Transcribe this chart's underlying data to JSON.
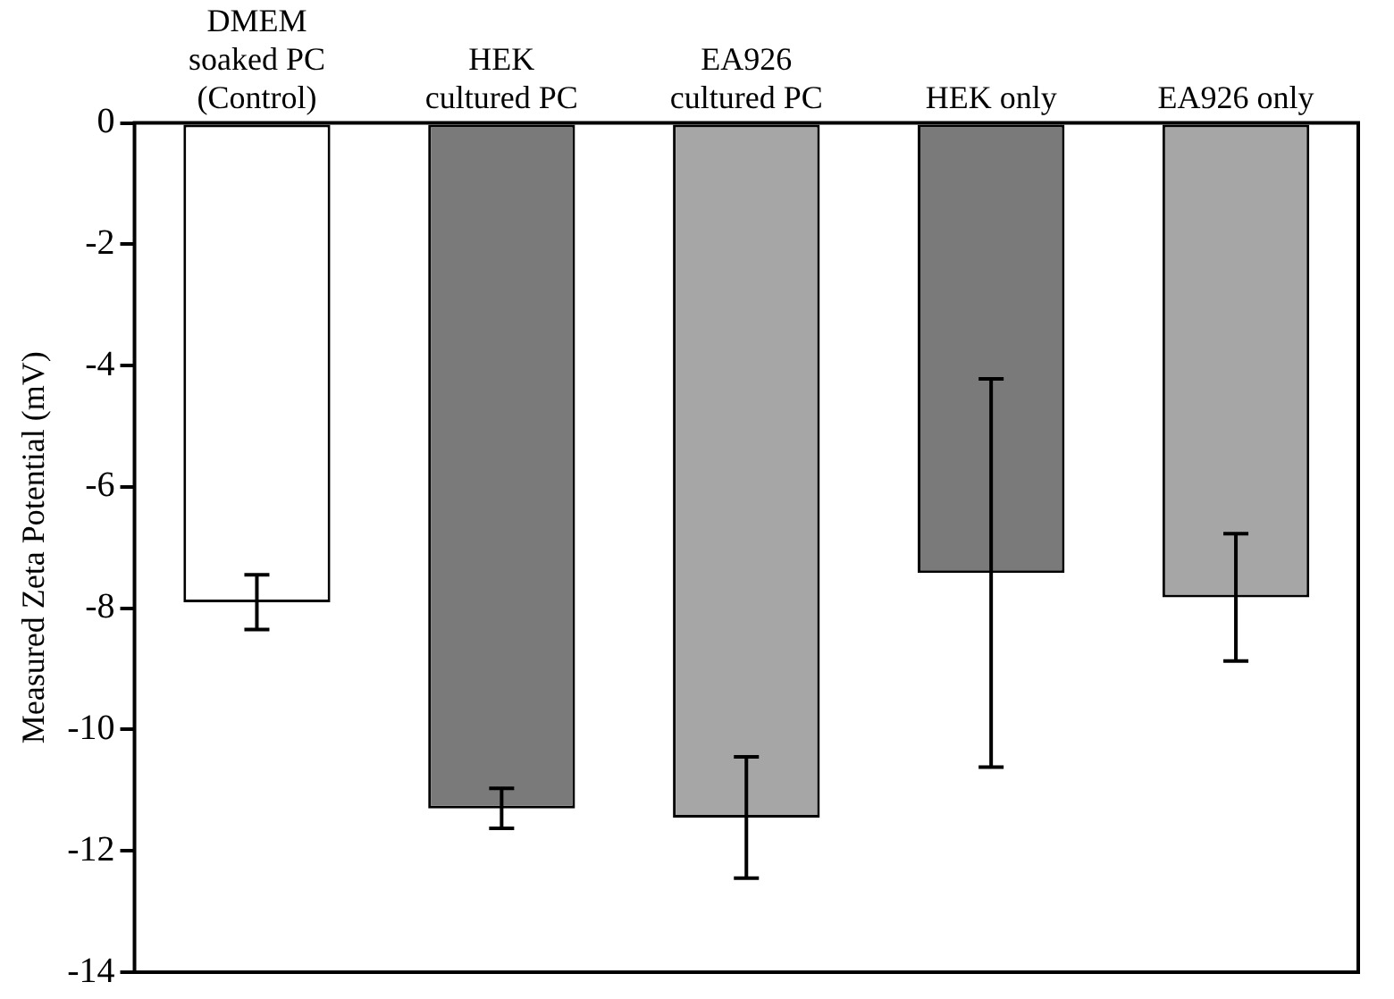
{
  "chart_data": {
    "type": "bar",
    "ylabel": "Measured Zeta Potential (mV)",
    "categories": [
      "DMEM\nsoaked PC\n(Control)",
      "HEK\ncultured PC",
      "EA926\ncultured PC",
      "HEK only",
      "EA926 only"
    ],
    "values": [
      -7.9,
      -11.3,
      -11.45,
      -7.42,
      -7.82
    ],
    "errors": [
      0.45,
      0.33,
      1.0,
      3.2,
      1.05
    ],
    "colors": [
      "#ffffff",
      "#7a7a7a",
      "#a6a6a6",
      "#7a7a7a",
      "#a6a6a6"
    ],
    "ylim": [
      -14,
      0
    ],
    "yticks": [
      -14,
      -12,
      -10,
      -8,
      -6,
      -4,
      -2,
      0
    ],
    "grid": false,
    "legend": false
  }
}
